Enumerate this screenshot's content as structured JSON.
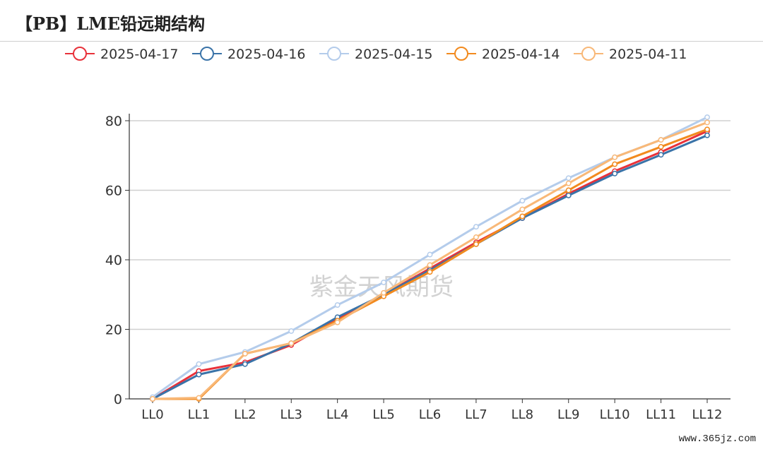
{
  "page": {
    "title": "【PB】LME铅远期结构",
    "watermark": "紫金天风期货",
    "footer": "www.365jz.com"
  },
  "chart_data": {
    "type": "line",
    "title": "【PB】LME铅远期结构",
    "xlabel": "",
    "ylabel": "",
    "categories": [
      "LL0",
      "LL1",
      "LL2",
      "LL3",
      "LL4",
      "LL5",
      "LL6",
      "LL7",
      "LL8",
      "LL9",
      "LL10",
      "LL11",
      "LL12"
    ],
    "ylim": [
      0,
      80
    ],
    "yticks": [
      0,
      20,
      40,
      60,
      80
    ],
    "grid": true,
    "legend_position": "top",
    "series": [
      {
        "name": "2025-04-17",
        "color": "#e8313a",
        "values": [
          0,
          8,
          10.5,
          15.5,
          23,
          30,
          37.5,
          45,
          52,
          59,
          65.5,
          71,
          77
        ]
      },
      {
        "name": "2025-04-16",
        "color": "#3a73a8",
        "values": [
          0,
          7,
          10,
          16,
          23.5,
          30,
          37,
          44.5,
          52,
          58.5,
          64.8,
          70.2,
          75.8
        ]
      },
      {
        "name": "2025-04-15",
        "color": "#b4cceb",
        "values": [
          0.5,
          10,
          13.5,
          19.5,
          27,
          33.5,
          41.5,
          49.5,
          57,
          63.5,
          69.5,
          74.5,
          81
        ]
      },
      {
        "name": "2025-04-14",
        "color": "#f28a1e",
        "values": [
          0,
          0,
          13,
          16,
          22.5,
          29.5,
          36.5,
          44.5,
          52.5,
          60,
          67.5,
          72.5,
          77.5
        ]
      },
      {
        "name": "2025-04-11",
        "color": "#f8b878",
        "values": [
          0,
          0.3,
          13,
          16,
          22,
          30.5,
          38.5,
          46.5,
          54.5,
          62,
          69.5,
          74.5,
          79.5
        ]
      }
    ]
  }
}
